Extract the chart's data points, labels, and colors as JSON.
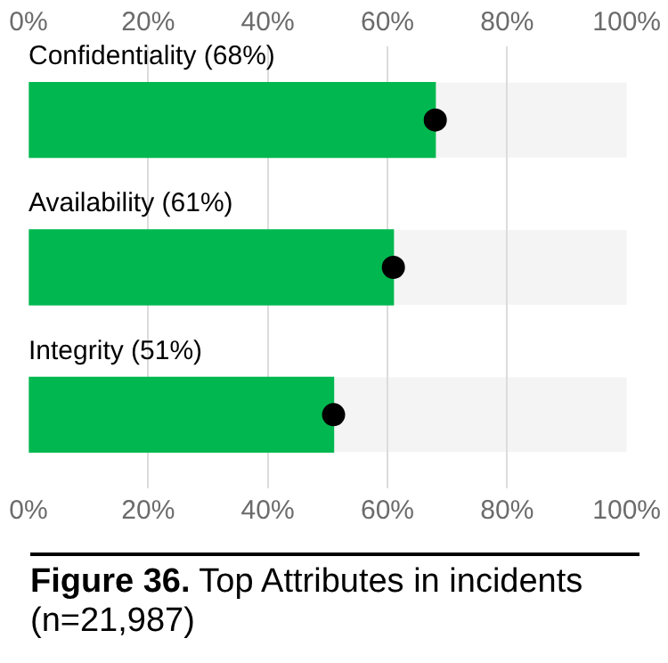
{
  "chart_data": {
    "type": "bar",
    "orientation": "horizontal",
    "title": "Figure 36.",
    "subtitle": "Top Attributes in incidents (n=21,987)",
    "categories": [
      "Confidentiality (68%)",
      "Availability (61%)",
      "Integrity (51%)"
    ],
    "series": [
      {
        "color": "#00b84f",
        "values": [
          68,
          61,
          51
        ]
      },
      {
        "type": "scatter",
        "color": "#000000",
        "x": [
          "Confidentiality (68%)",
          "Availability (61%)",
          "Integrity (51%)"
        ],
        "values": [
          68,
          61,
          51
        ]
      }
    ],
    "xlim": [
      0,
      100
    ],
    "xticks": [
      {
        "value": 0,
        "label": "0%"
      },
      {
        "value": 20,
        "label": "20%"
      },
      {
        "value": 40,
        "label": "40%"
      },
      {
        "value": 60,
        "label": "60%"
      },
      {
        "value": 80,
        "label": "80%"
      },
      {
        "value": 100,
        "label": "100%"
      }
    ],
    "x2lim": [
      0,
      100
    ],
    "x2ticks": [
      {
        "value": 0,
        "label": "0%"
      },
      {
        "value": 20,
        "label": "20%"
      },
      {
        "value": 40,
        "label": "40%"
      },
      {
        "value": 60,
        "label": "60%"
      },
      {
        "value": 80,
        "label": "80%"
      },
      {
        "value": 100,
        "label": "100%"
      }
    ],
    "grid": "x",
    "legend": false,
    "marker": "circle"
  }
}
